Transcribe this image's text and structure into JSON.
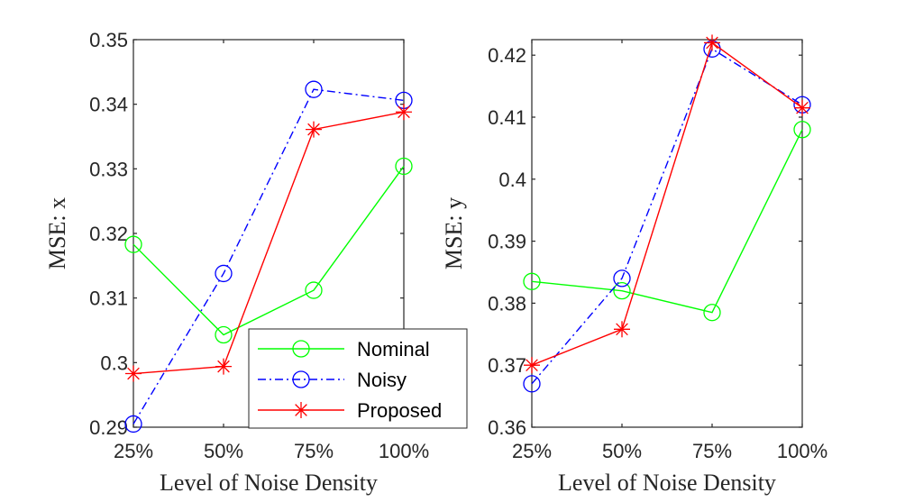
{
  "chart_data": [
    {
      "type": "line",
      "title": "",
      "xlabel": "Level of Noise Density",
      "ylabel": "MSE: x",
      "categories": [
        "25%",
        "50%",
        "75%",
        "100%"
      ],
      "ylim": [
        0.29,
        0.35
      ],
      "yticks": [
        0.29,
        0.3,
        0.31,
        0.32,
        0.33,
        0.34,
        0.35
      ],
      "ytick_labels": [
        "0.29",
        "0.3",
        "0.31",
        "0.32",
        "0.33",
        "0.34",
        "0.35"
      ],
      "grid": false,
      "series": [
        {
          "name": "Nominal",
          "color": "#00ff00",
          "marker": "circle",
          "dash": "solid",
          "values": [
            0.3183,
            0.3043,
            0.3112,
            0.3304
          ]
        },
        {
          "name": "Noisy",
          "color": "#0000ff",
          "marker": "circle",
          "dash": "dashdot",
          "values": [
            0.2905,
            0.3138,
            0.3423,
            0.3406
          ]
        },
        {
          "name": "Proposed",
          "color": "#ff0000",
          "marker": "asterisk",
          "dash": "solid",
          "values": [
            0.2983,
            0.2994,
            0.3361,
            0.3388
          ]
        }
      ]
    },
    {
      "type": "line",
      "title": "",
      "xlabel": "Level of Noise Density",
      "ylabel": "MSE: y",
      "categories": [
        "25%",
        "50%",
        "75%",
        "100%"
      ],
      "ylim": [
        0.36,
        0.4225
      ],
      "yticks": [
        0.36,
        0.37,
        0.38,
        0.39,
        0.4,
        0.41,
        0.42
      ],
      "ytick_labels": [
        "0.36",
        "0.37",
        "0.38",
        "0.39",
        "0.4",
        "0.41",
        "0.42"
      ],
      "grid": false,
      "series": [
        {
          "name": "Nominal",
          "color": "#00ff00",
          "marker": "circle",
          "dash": "solid",
          "values": [
            0.3835,
            0.382,
            0.3785,
            0.408
          ]
        },
        {
          "name": "Noisy",
          "color": "#0000ff",
          "marker": "circle",
          "dash": "dashdot",
          "values": [
            0.367,
            0.384,
            0.421,
            0.412
          ]
        },
        {
          "name": "Proposed",
          "color": "#ff0000",
          "marker": "asterisk",
          "dash": "solid",
          "values": [
            0.37,
            0.3758,
            0.422,
            0.4115
          ]
        }
      ]
    }
  ],
  "legend": {
    "location": "center",
    "entries": [
      "Nominal",
      "Noisy",
      "Proposed"
    ]
  }
}
